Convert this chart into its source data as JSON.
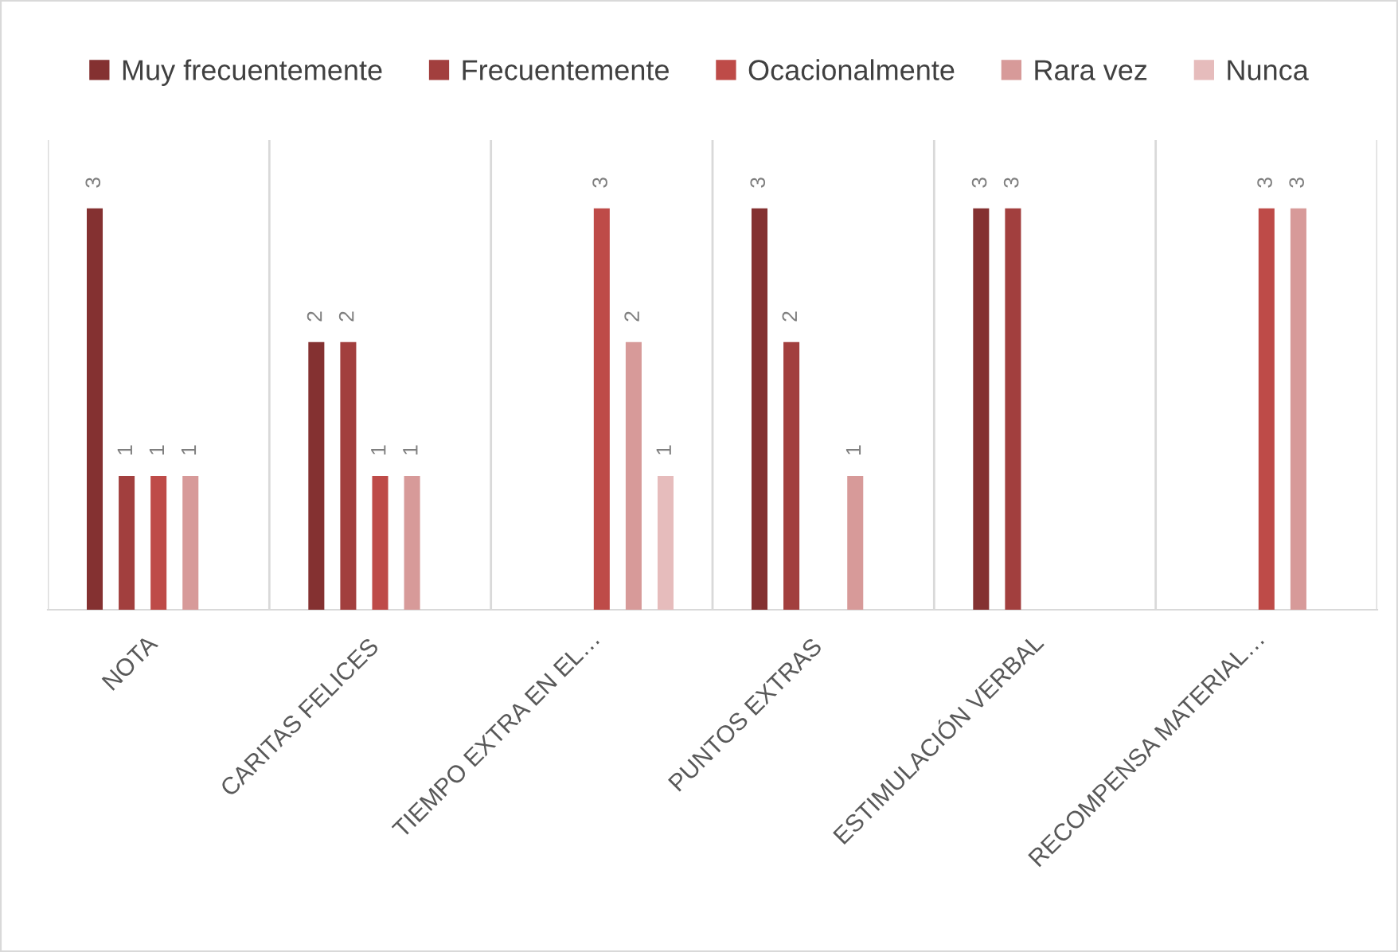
{
  "chart_data": {
    "type": "bar",
    "categories": [
      "NOTA",
      "CARITAS FELICES",
      "TIEMPO EXTRA EN EL…",
      "PUNTOS EXTRAS",
      "ESTIMULACIÓN VERBAL",
      "RECOMPENSA MATERIAL…"
    ],
    "series": [
      {
        "name": "Muy frecuentemente",
        "color": "#843131",
        "values": [
          3,
          2,
          null,
          3,
          3,
          null
        ]
      },
      {
        "name": "Frecuentemente",
        "color": "#a23f3e",
        "values": [
          1,
          2,
          null,
          2,
          3,
          null
        ]
      },
      {
        "name": "Ocacionalmente",
        "color": "#be4b48",
        "values": [
          1,
          1,
          3,
          null,
          null,
          3
        ]
      },
      {
        "name": "Rara vez",
        "color": "#d79a99",
        "values": [
          1,
          1,
          2,
          1,
          null,
          3
        ]
      },
      {
        "name": "Nunca",
        "color": "#e6bcbc",
        "values": [
          null,
          null,
          1,
          null,
          null,
          null
        ]
      }
    ],
    "data_labels": true,
    "legend": "top",
    "grid": "x",
    "tick_labels": "x"
  }
}
